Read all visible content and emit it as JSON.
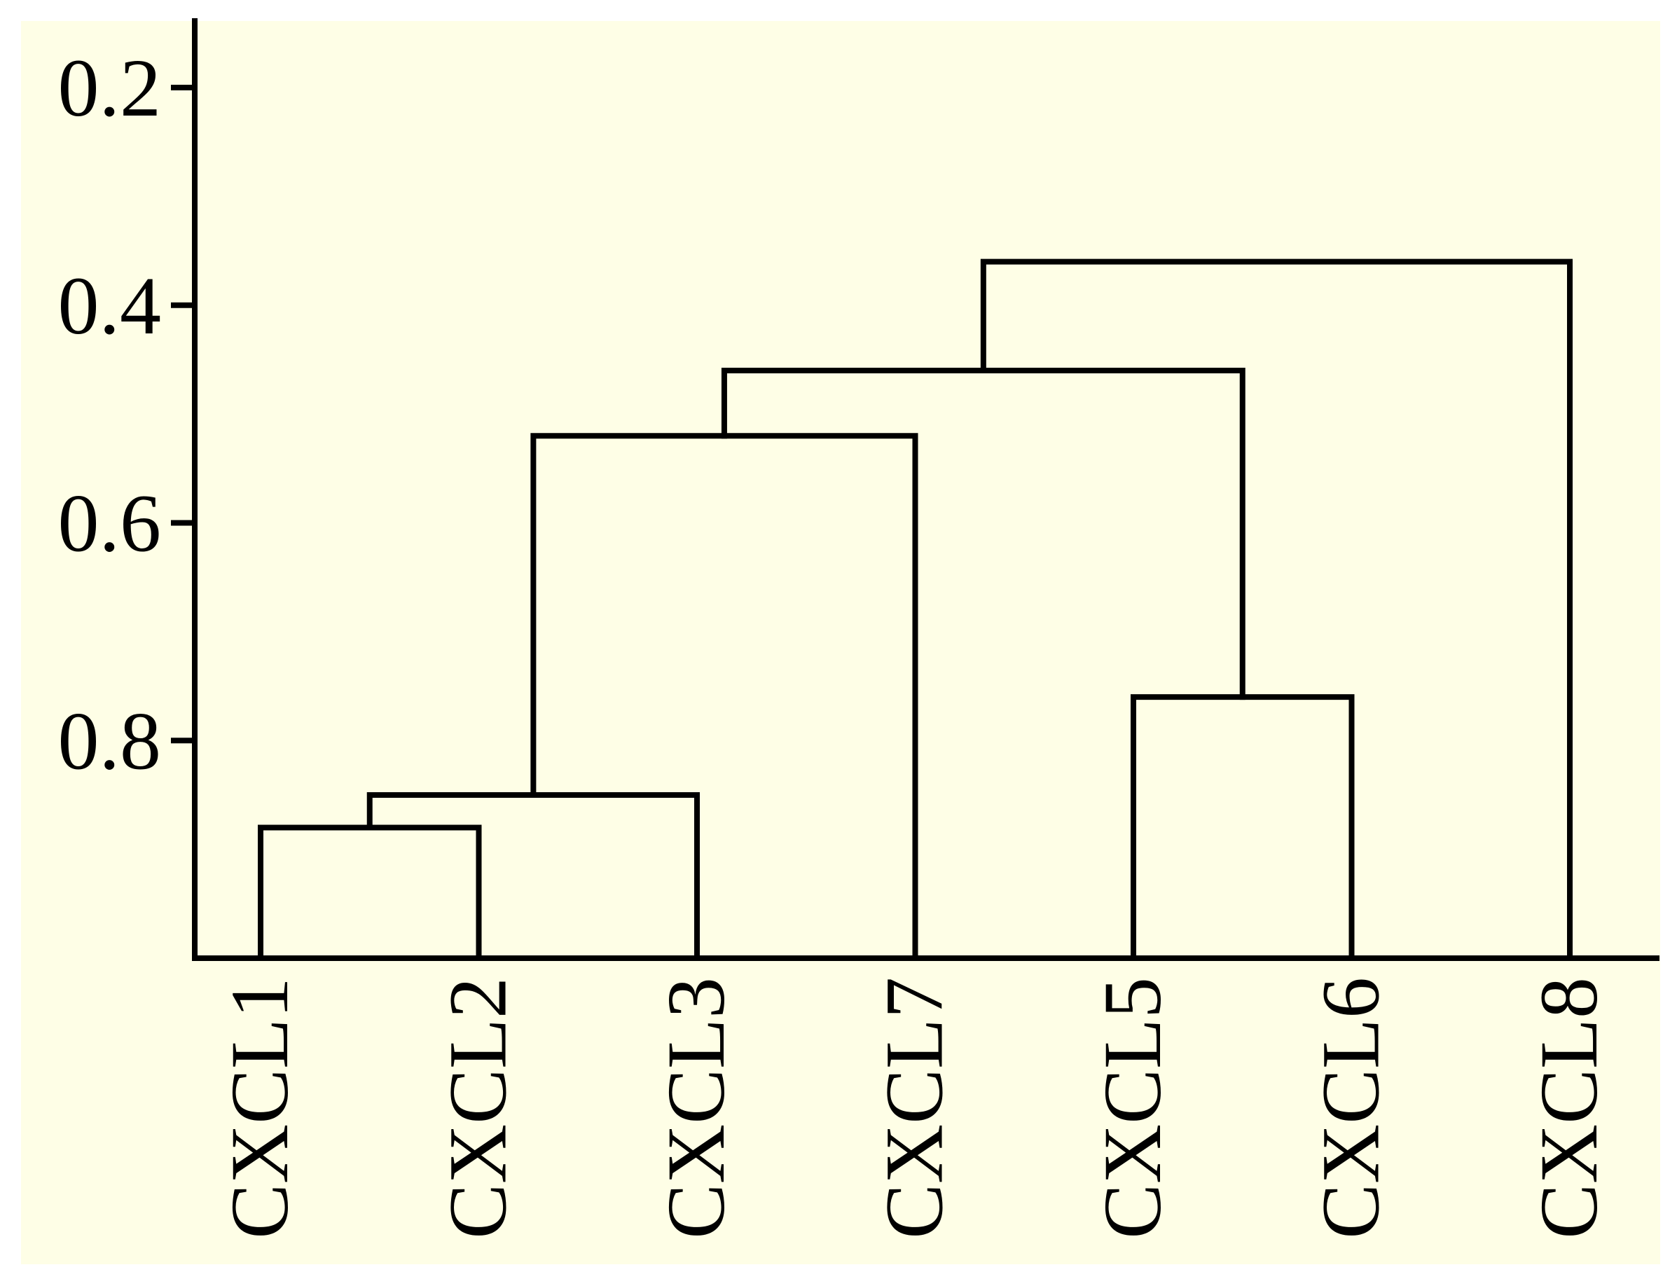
{
  "chart_data": {
    "type": "dendrogram",
    "title": "",
    "xlabel": "",
    "ylabel": "",
    "background_color": "#fefee6",
    "line_color": "#000000",
    "ylim": [
      0.2,
      1.0
    ],
    "y_axis_inverted": true,
    "yticks": [
      0.2,
      0.4,
      0.6,
      0.8
    ],
    "ytick_labels": [
      "0.2",
      "0.4",
      "0.6",
      "0.8"
    ],
    "grid": false,
    "legend": "none",
    "leaves": [
      "CXCL1",
      "CXCL2",
      "CXCL3",
      "CXCL7",
      "CXCL5",
      "CXCL6",
      "CXCL8"
    ],
    "merges": [
      {
        "left": "CXCL1",
        "right": "CXCL2",
        "height": 0.88
      },
      {
        "left": "CXCL1+CXCL2",
        "right": "CXCL3",
        "height": 0.85
      },
      {
        "left": "CXCL1+CXCL2+CXCL3",
        "right": "CXCL7",
        "height": 0.52
      },
      {
        "left": "CXCL5",
        "right": "CXCL6",
        "height": 0.76
      },
      {
        "left": "CXCL1+CXCL2+CXCL3+CXCL7",
        "right": "CXCL5+CXCL6",
        "height": 0.46
      },
      {
        "left": "CXCL1+CXCL2+CXCL3+CXCL7+CXCL5+CXCL6",
        "right": "CXCL8",
        "height": 0.36
      }
    ]
  }
}
